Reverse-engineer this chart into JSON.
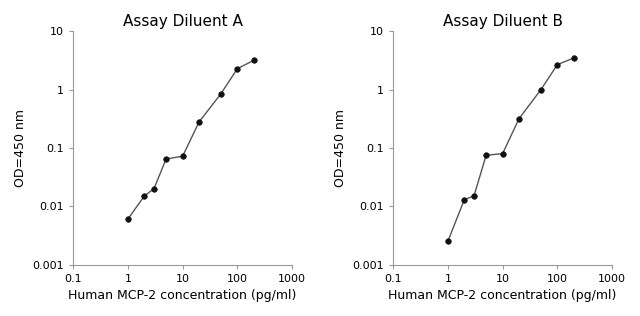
{
  "panel_A": {
    "title": "Assay Diluent A",
    "x": [
      1.0,
      2.0,
      3.0,
      5.0,
      10.0,
      20.0,
      50.0,
      100.0,
      200.0
    ],
    "y": [
      0.006,
      0.015,
      0.02,
      0.065,
      0.072,
      0.28,
      0.85,
      2.3,
      3.2
    ],
    "xlabel": "Human MCP-2 concentration (pg/ml)",
    "ylabel": "OD=450 nm",
    "xlim": [
      0.1,
      1000
    ],
    "ylim": [
      0.001,
      10
    ]
  },
  "panel_B": {
    "title": "Assay Diluent B",
    "x": [
      1.0,
      2.0,
      3.0,
      5.0,
      10.0,
      20.0,
      50.0,
      100.0,
      200.0
    ],
    "y": [
      0.0025,
      0.013,
      0.015,
      0.075,
      0.08,
      0.32,
      1.0,
      2.7,
      3.5
    ],
    "xlabel": "Human MCP-2 concentration (pg/ml)",
    "ylabel": "OD=450 nm",
    "xlim": [
      0.1,
      1000
    ],
    "ylim": [
      0.001,
      10
    ]
  },
  "line_color": "#555555",
  "marker_color": "#111111",
  "marker_size": 4,
  "line_width": 1.0,
  "bg_color": "#ffffff",
  "title_fontsize": 11,
  "label_fontsize": 9,
  "tick_fontsize": 8,
  "spine_color": "#999999"
}
